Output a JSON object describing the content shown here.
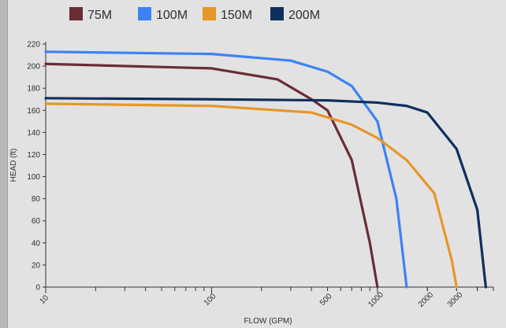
{
  "chart_data": {
    "type": "line",
    "title": "",
    "xlabel": "FLOW (GPM)",
    "ylabel": "HEAD (ft)",
    "x_scale": "log",
    "xlim": [
      10,
      5000
    ],
    "ylim": [
      0,
      220
    ],
    "x_ticks": [
      10,
      100,
      500,
      1000,
      2000,
      3000
    ],
    "y_ticks": [
      0,
      20,
      40,
      60,
      80,
      100,
      120,
      140,
      160,
      180,
      200,
      220
    ],
    "legend_position": "top",
    "series": [
      {
        "name": "75M",
        "color": "#6a2d35",
        "points": [
          [
            10,
            202
          ],
          [
            100,
            198
          ],
          [
            250,
            188
          ],
          [
            400,
            170
          ],
          [
            500,
            160
          ],
          [
            700,
            115
          ],
          [
            900,
            40
          ],
          [
            1000,
            0
          ]
        ]
      },
      {
        "name": "100M",
        "color": "#3d82f5",
        "points": [
          [
            10,
            213
          ],
          [
            100,
            211
          ],
          [
            300,
            205
          ],
          [
            500,
            195
          ],
          [
            700,
            182
          ],
          [
            1000,
            150
          ],
          [
            1300,
            80
          ],
          [
            1500,
            0
          ]
        ]
      },
      {
        "name": "150M",
        "color": "#e59728",
        "points": [
          [
            10,
            166
          ],
          [
            100,
            164
          ],
          [
            400,
            158
          ],
          [
            700,
            147
          ],
          [
            1000,
            135
          ],
          [
            1500,
            115
          ],
          [
            2200,
            85
          ],
          [
            2800,
            25
          ],
          [
            3000,
            0
          ]
        ]
      },
      {
        "name": "200M",
        "color": "#0f2f5d",
        "points": [
          [
            10,
            171
          ],
          [
            100,
            170
          ],
          [
            500,
            169
          ],
          [
            1000,
            167
          ],
          [
            1500,
            164
          ],
          [
            2000,
            158
          ],
          [
            3000,
            125
          ],
          [
            4000,
            70
          ],
          [
            4500,
            0
          ]
        ]
      }
    ]
  }
}
